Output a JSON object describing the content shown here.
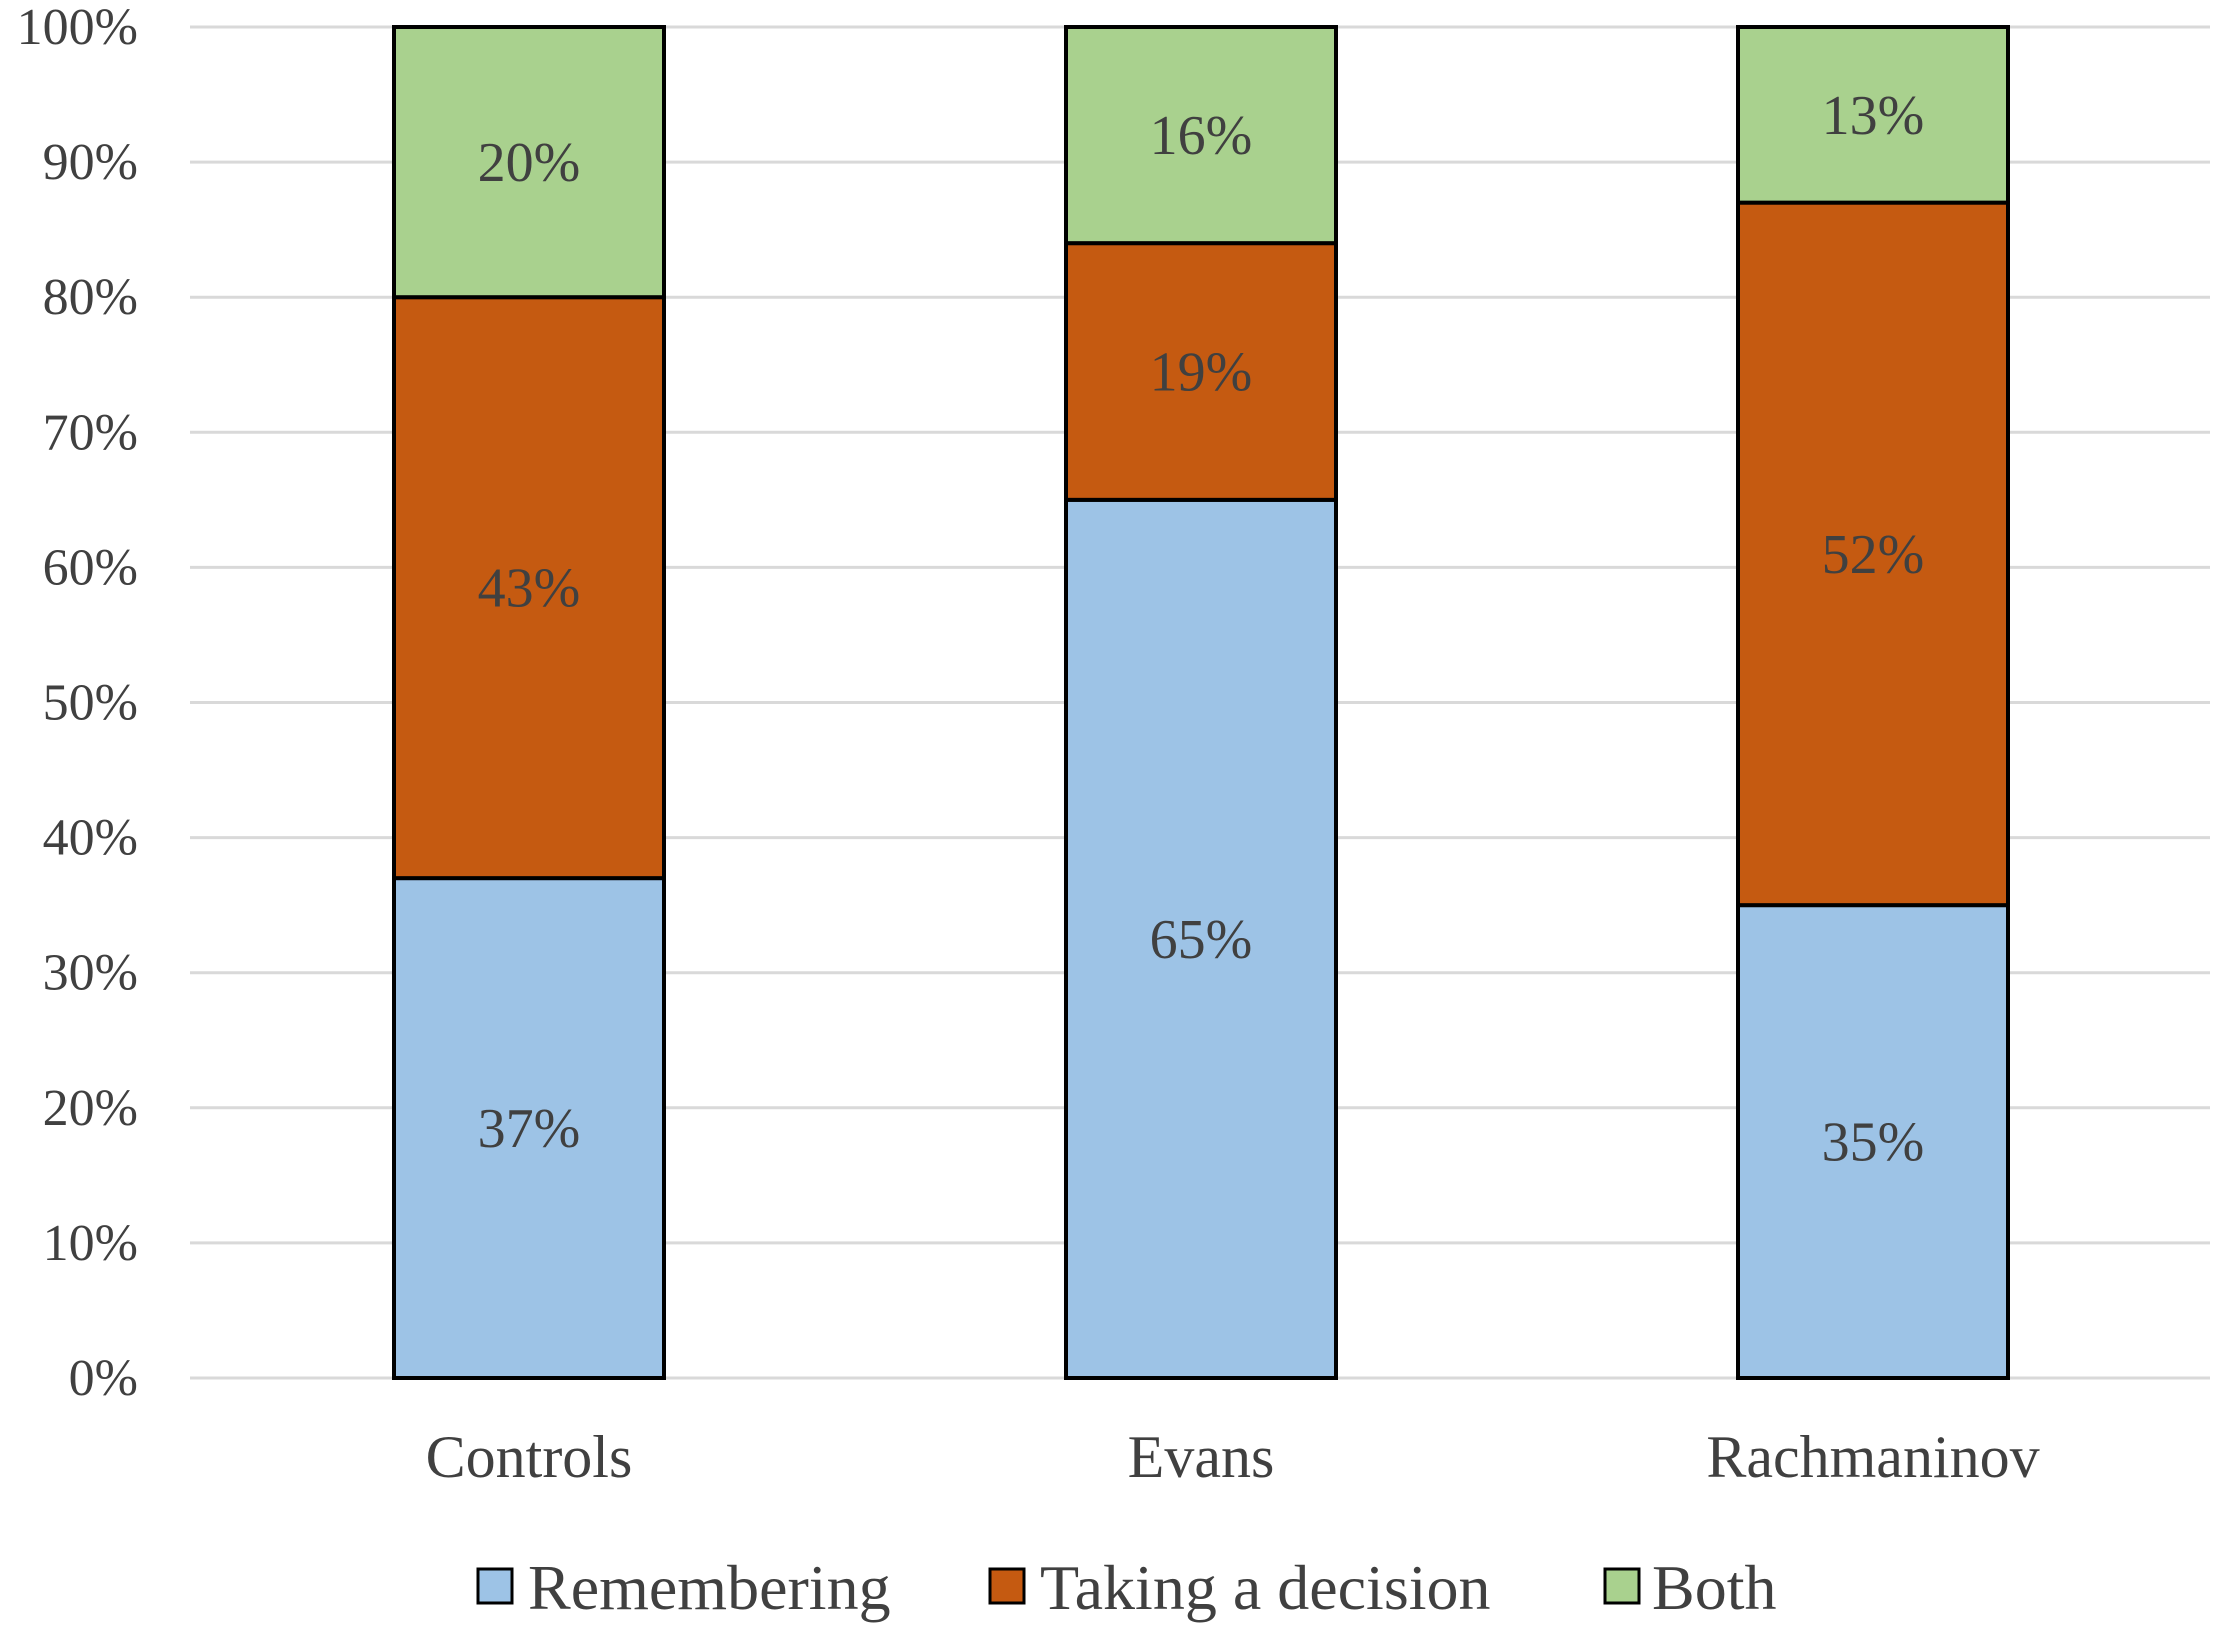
{
  "chart_data": {
    "type": "bar",
    "stacked": true,
    "categories": [
      "Controls",
      "Evans",
      "Rachmaninov"
    ],
    "series": [
      {
        "name": "Remembering",
        "values": [
          37,
          65,
          35
        ],
        "labels": [
          "37%",
          "65%",
          "35%"
        ],
        "color": "#9dc3e6"
      },
      {
        "name": "Taking a decision",
        "values": [
          43,
          19,
          52
        ],
        "labels": [
          "43%",
          "19%",
          "52%"
        ],
        "color": "#c55a11"
      },
      {
        "name": "Both",
        "values": [
          20,
          16,
          13
        ],
        "labels": [
          "20%",
          "16%",
          "13%"
        ],
        "color": "#a9d18e"
      }
    ],
    "yticks": [
      0,
      10,
      20,
      30,
      40,
      50,
      60,
      70,
      80,
      90,
      100
    ],
    "ytick_labels": [
      "0%",
      "10%",
      "20%",
      "30%",
      "40%",
      "50%",
      "60%",
      "70%",
      "80%",
      "90%",
      "100%"
    ],
    "ylim": [
      0,
      100
    ],
    "grid": true,
    "legend_position": "bottom",
    "title": "",
    "xlabel": "",
    "ylabel": ""
  }
}
